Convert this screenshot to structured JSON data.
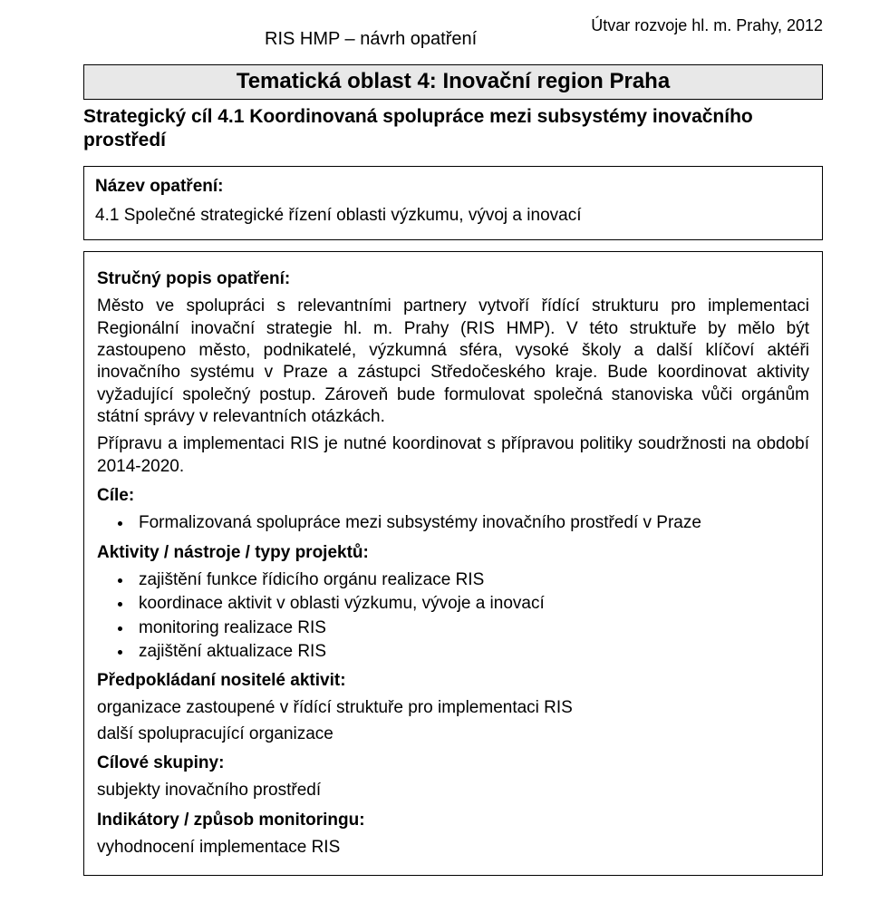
{
  "colors": {
    "page_bg": "#ffffff",
    "band_bg": "#e8e8e8",
    "border": "#000000",
    "text": "#000000"
  },
  "header": {
    "center": "RIS HMP – návrh opatření",
    "right": "Útvar rozvoje hl. m. Prahy, 2012"
  },
  "title": "Tematická oblast 4: Inovační region Praha",
  "strategic_goal_line1": "Strategický cíl 4.1 Koordinovaná spolupráce mezi subsystémy inovačního",
  "strategic_goal_line2": "prostředí",
  "nazev_opatreni": {
    "heading": "Název opatření:",
    "text": "4.1 Společné strategické řízení oblasti výzkumu, vývoj a inovací"
  },
  "body": {
    "strucny_popis_heading": "Stručný popis opatření:",
    "strucny_popis_p1": "Město ve spolupráci s relevantními partnery vytvoří řídící strukturu pro implementaci Regionální inovační strategie hl. m. Prahy (RIS HMP). V této struktuře by mělo být zastoupeno město, podnikatelé, výzkumná sféra, vysoké školy a další klíčoví aktéři inovačního systému v Praze a zástupci Středočeského kraje. Bude koordinovat aktivity vyžadující společný postup. Zároveň bude formulovat společná stanoviska vůči orgánům státní správy v relevantních otázkách.",
    "strucny_popis_p2": "Přípravu a implementaci RIS je nutné koordinovat s přípravou politiky soudržnosti na období 2014-2020.",
    "cile_heading": "Cíle:",
    "cile_bullets": [
      "Formalizovaná spolupráce mezi subsystémy inovačního prostředí v Praze"
    ],
    "aktivity_heading": "Aktivity / nástroje / typy projektů:",
    "aktivity_bullets": [
      "zajištění funkce řídicího orgánu realizace RIS",
      "koordinace aktivit v oblasti výzkumu, vývoje a inovací",
      "monitoring realizace RIS",
      "zajištění aktualizace RIS"
    ],
    "nositele_heading": "Předpokládaní nositelé aktivit:",
    "nositele_lines": [
      "organizace zastoupené v řídící struktuře pro implementaci RIS",
      "další spolupracující organizace"
    ],
    "cilove_heading": "Cílové skupiny:",
    "cilove_lines": [
      "subjekty inovačního prostředí"
    ],
    "indikatory_heading": "Indikátory / způsob monitoringu:",
    "indikatory_lines": [
      "vyhodnocení implementace RIS"
    ]
  }
}
